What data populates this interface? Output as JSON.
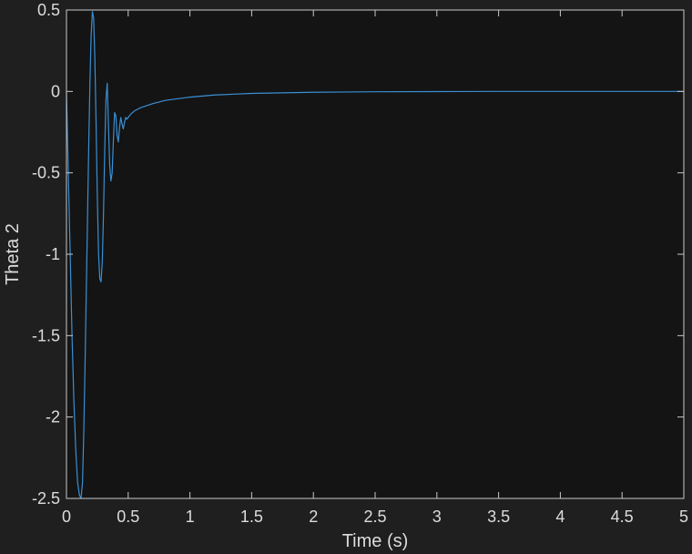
{
  "chart_data": {
    "type": "line",
    "xlabel": "Time (s)",
    "ylabel": "Theta 2",
    "xlim": [
      0,
      5
    ],
    "ylim": [
      -2.5,
      0.5
    ],
    "xticks": [
      0,
      0.5,
      1,
      1.5,
      2,
      2.5,
      3,
      3.5,
      4,
      4.5,
      5
    ],
    "yticks": [
      -2.5,
      -2,
      -1.5,
      -1,
      -0.5,
      0,
      0.5
    ],
    "xtick_labels": [
      "0",
      "0.5",
      "1",
      "1.5",
      "2",
      "2.5",
      "3",
      "3.5",
      "4",
      "4.5",
      "5"
    ],
    "ytick_labels": [
      "-2.5",
      "-2",
      "-1.5",
      "-1",
      "-0.5",
      "0",
      "0.5"
    ],
    "grid": false,
    "colors": {
      "figure_background": "#1f1f1f",
      "axes_background": "#141414",
      "axes_edge": "#c8c8c8",
      "text": "#dcdcdc",
      "series": "#3a8fd4"
    },
    "series": [
      {
        "x": [
          0,
          0.015,
          0.03,
          0.045,
          0.06,
          0.075,
          0.09,
          0.105,
          0.118,
          0.13,
          0.14,
          0.15,
          0.16,
          0.17,
          0.18,
          0.19,
          0.2,
          0.21,
          0.22,
          0.23,
          0.24,
          0.25,
          0.26,
          0.27,
          0.28,
          0.29,
          0.3,
          0.31,
          0.32,
          0.33,
          0.34,
          0.35,
          0.36,
          0.37,
          0.38,
          0.39,
          0.4,
          0.41,
          0.42,
          0.43,
          0.44,
          0.45,
          0.46,
          0.47,
          0.48,
          0.49,
          0.5,
          0.52,
          0.55,
          0.6,
          0.7,
          0.8,
          1.0,
          1.2,
          1.5,
          2.0,
          2.5,
          3.0,
          3.5,
          4.0,
          4.5,
          5.0
        ],
        "y": [
          0,
          -0.5,
          -1.0,
          -1.5,
          -1.9,
          -2.2,
          -2.4,
          -2.48,
          -2.5,
          -2.4,
          -2.1,
          -1.7,
          -1.25,
          -0.8,
          -0.35,
          0.05,
          0.35,
          0.49,
          0.45,
          0.2,
          -0.2,
          -0.65,
          -1.0,
          -1.15,
          -1.17,
          -1.05,
          -0.75,
          -0.35,
          -0.05,
          0.05,
          -0.2,
          -0.45,
          -0.55,
          -0.5,
          -0.3,
          -0.13,
          -0.15,
          -0.27,
          -0.31,
          -0.22,
          -0.16,
          -0.2,
          -0.23,
          -0.19,
          -0.16,
          -0.17,
          -0.16,
          -0.14,
          -0.12,
          -0.1,
          -0.075,
          -0.055,
          -0.035,
          -0.022,
          -0.012,
          -0.005,
          -0.002,
          -0.001,
          0,
          0,
          0,
          0
        ]
      }
    ]
  }
}
